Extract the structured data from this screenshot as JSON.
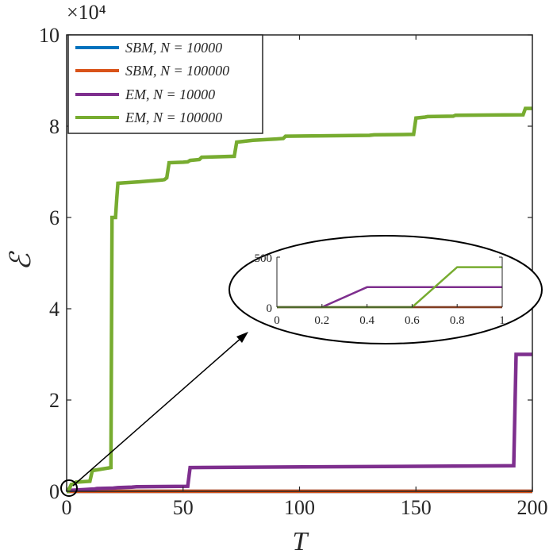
{
  "chart_data": {
    "type": "line",
    "title": "",
    "xlabel": "T",
    "ylabel": "ℰ",
    "xlim": [
      0,
      200
    ],
    "ylim": [
      0,
      100000
    ],
    "x_ticks": [
      0,
      50,
      100,
      150,
      200
    ],
    "y_ticks": [
      0,
      20000,
      40000,
      60000,
      80000,
      100000
    ],
    "y_tick_labels": [
      "0",
      "2",
      "4",
      "6",
      "8",
      "10"
    ],
    "y_multiplier": "×10⁴",
    "grid": false,
    "legend_position": "top-left",
    "series": [
      {
        "name": "SBM, N = 10000",
        "color": "#0072BD",
        "x": [
          0,
          200
        ],
        "y": [
          0,
          0
        ]
      },
      {
        "name": "SBM, N = 100000",
        "color": "#D95319",
        "x": [
          0,
          200
        ],
        "y": [
          0,
          0
        ]
      },
      {
        "name": "EM, N = 10000",
        "color": "#7E2F8E",
        "x": [
          0,
          0.2,
          0.4,
          1,
          5,
          8,
          10,
          12,
          13,
          20,
          22,
          28,
          30,
          52,
          53,
          192,
          193,
          200
        ],
        "y": [
          0,
          0,
          200,
          200,
          300,
          400,
          450,
          500,
          600,
          700,
          800,
          900,
          1000,
          1100,
          5200,
          5600,
          30000,
          30000
        ]
      },
      {
        "name": "EM, N = 100000",
        "color": "#77AC30",
        "x": [
          0,
          0.6,
          0.8,
          1,
          2,
          3,
          4,
          10,
          11,
          12,
          19,
          19.5,
          21,
          21.5,
          22,
          31,
          41,
          42,
          43,
          44,
          50,
          52,
          53,
          57,
          58,
          72,
          73,
          80,
          90,
          93,
          94,
          110,
          130,
          132,
          149,
          150,
          154,
          155,
          166,
          167,
          196,
          197,
          200
        ],
        "y": [
          0,
          0,
          400,
          400,
          1500,
          1600,
          2000,
          2200,
          4500,
          4600,
          5200,
          60000,
          60000,
          64000,
          67500,
          67800,
          68200,
          68300,
          68700,
          72000,
          72100,
          72200,
          72500,
          72700,
          73200,
          73400,
          76500,
          76900,
          77200,
          77300,
          77800,
          77900,
          78000,
          78100,
          78200,
          81800,
          82000,
          82100,
          82200,
          82400,
          82500,
          83900,
          83900
        ]
      }
    ],
    "inset": {
      "xlim": [
        0,
        1
      ],
      "ylim": [
        0,
        500
      ],
      "x_ticks": [
        0,
        0.2,
        0.4,
        0.6,
        0.8,
        1
      ],
      "x_tick_labels": [
        "0",
        "0.2",
        "0.4",
        "0.6",
        "0.8",
        "1"
      ],
      "y_ticks": [
        0,
        500
      ],
      "y_tick_labels": [
        "0",
        "500"
      ]
    }
  }
}
